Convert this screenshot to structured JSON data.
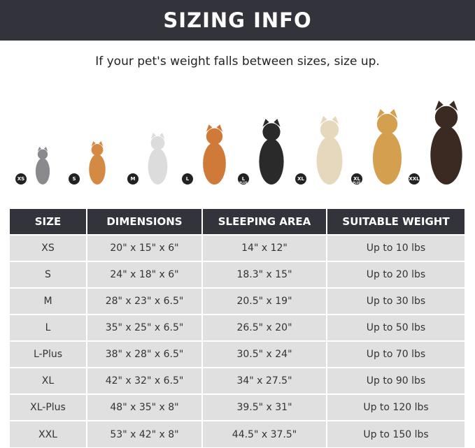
{
  "header": {
    "title": "SIZING INFO",
    "subtitle": "If your pet's weight falls between sizes, size up."
  },
  "pets": [
    {
      "badge": "XS",
      "plus": "",
      "color": "#8a8a8e",
      "height": 0.45
    },
    {
      "badge": "S",
      "plus": "",
      "color": "#d58a44",
      "height": 0.52
    },
    {
      "badge": "M",
      "plus": "",
      "color": "#dcdcdc",
      "height": 0.62
    },
    {
      "badge": "L",
      "plus": "",
      "color": "#d07a3a",
      "height": 0.72
    },
    {
      "badge": "L",
      "plus": "PLUS",
      "color": "#2a2a2a",
      "height": 0.78
    },
    {
      "badge": "XL",
      "plus": "",
      "color": "#e6d8bc",
      "height": 0.82
    },
    {
      "badge": "XL",
      "plus": "PLUS",
      "color": "#d4a050",
      "height": 0.9
    },
    {
      "badge": "XXL",
      "plus": "",
      "color": "#3a2a22",
      "height": 1.0
    }
  ],
  "table": {
    "headers": [
      "SIZE",
      "DIMENSIONS",
      "SLEEPING AREA",
      "SUITABLE WEIGHT"
    ],
    "rows": [
      [
        "XS",
        "20\" x 15\" x 6\"",
        "14\" x 12\"",
        "Up to 10 lbs"
      ],
      [
        "S",
        "24\" x 18\" x 6\"",
        "18.3\" x 15\"",
        "Up to 20 lbs"
      ],
      [
        "M",
        "28\" x 23\" x 6.5\"",
        "20.5\" x 19\"",
        "Up to 30 lbs"
      ],
      [
        "L",
        "35\" x 25\" x 6.5\"",
        "26.5\" x 20\"",
        "Up to 50 lbs"
      ],
      [
        "L-Plus",
        "38\" x 28\" x 6.5\"",
        "30.5\" x 24\"",
        "Up to 70 lbs"
      ],
      [
        "XL",
        "42\" x 32\" x 6.5\"",
        "34\" x 27.5\"",
        "Up to 90 lbs"
      ],
      [
        "XL-Plus",
        "48\" x 35\" x 8\"",
        "39.5\" x 31\"",
        "Up to 120 lbs"
      ],
      [
        "XXL",
        "53\" x 42\" x 8\"",
        "44.5\" x 37.5\"",
        "Up to 150 lbs"
      ]
    ]
  }
}
